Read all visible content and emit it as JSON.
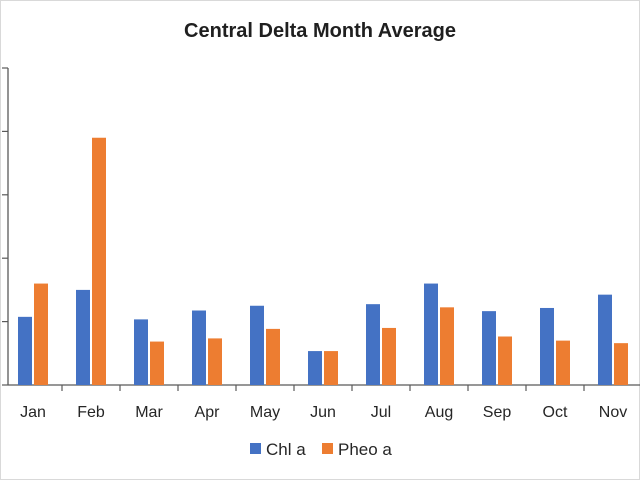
{
  "chart_data": {
    "type": "bar",
    "title": "Central Delta Month Average",
    "xlabel": "",
    "ylabel": "",
    "categories": [
      "Jan",
      "Feb",
      "Mar",
      "Apr",
      "May",
      "Jun",
      "Jul",
      "Aug",
      "Sep",
      "Oct",
      "Nov"
    ],
    "series": [
      {
        "name": "Chl a",
        "color": "#4472C4",
        "values": [
          2.15,
          3.0,
          2.07,
          2.35,
          2.5,
          1.07,
          2.55,
          3.2,
          2.33,
          2.43,
          2.85
        ]
      },
      {
        "name": "Pheo a",
        "color": "#ED7D31",
        "values": [
          3.2,
          7.8,
          1.37,
          1.47,
          1.77,
          1.07,
          1.8,
          2.45,
          1.53,
          1.4,
          1.32
        ]
      }
    ],
    "ylim": [
      0,
      10
    ],
    "y_tick_labels_visible": false,
    "grid": false,
    "legend_position": "bottom"
  }
}
